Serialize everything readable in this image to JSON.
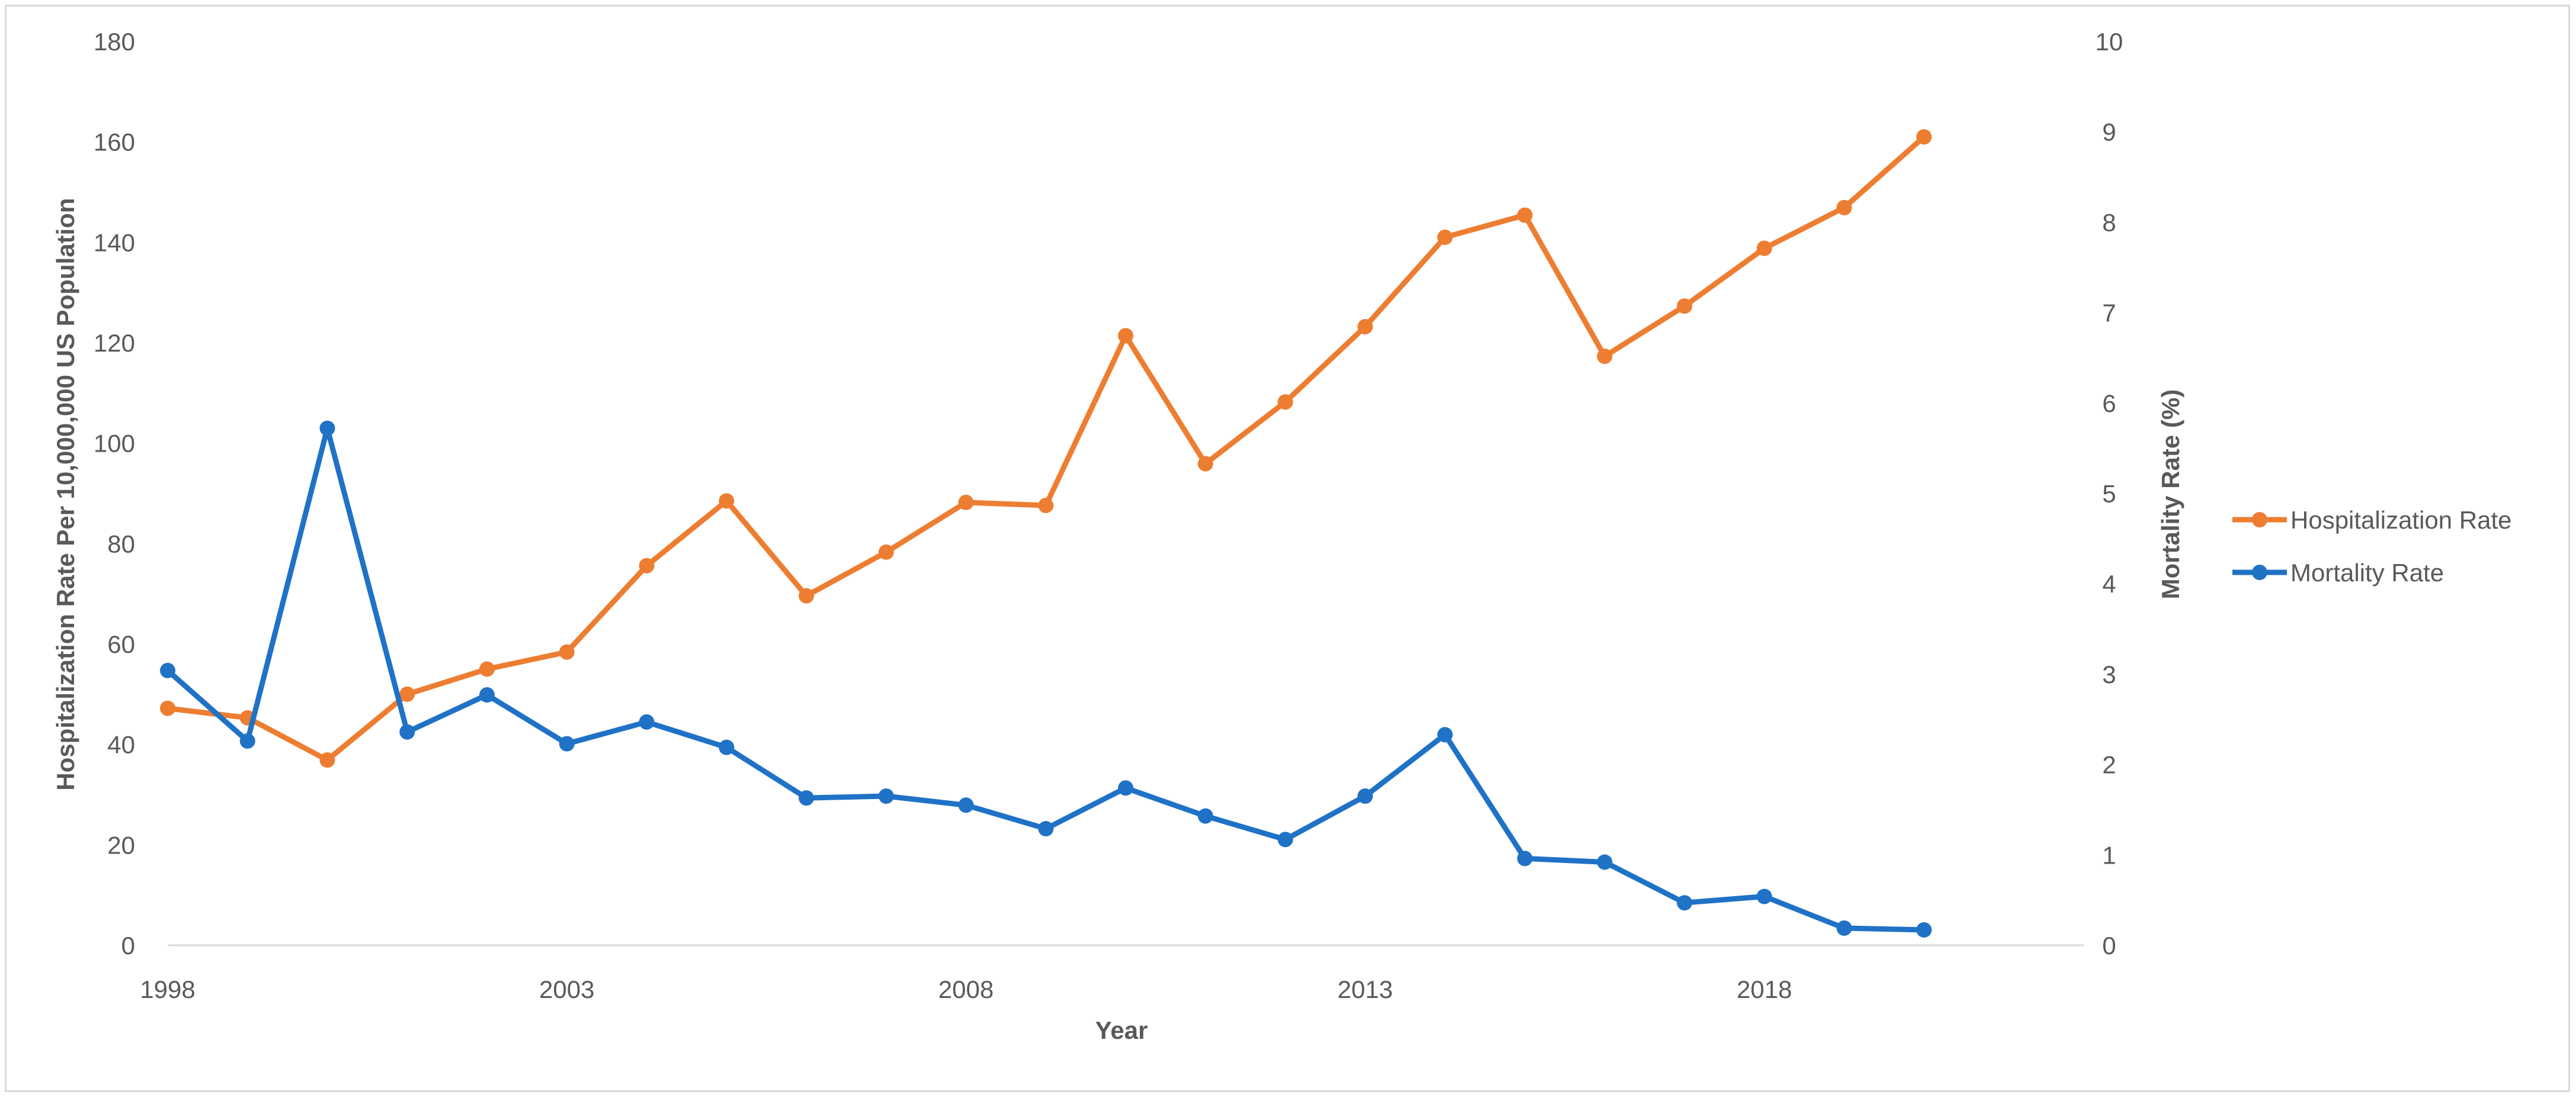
{
  "chart_data": {
    "type": "line",
    "title": "",
    "xlabel": "Year",
    "ylabel_left": "Hospitalization Rate Per 10,000,000 US Population",
    "ylabel_right": "Mortality Rate (%)",
    "x": [
      1998,
      1999,
      2000,
      2001,
      2002,
      2003,
      2004,
      2005,
      2006,
      2007,
      2008,
      2009,
      2010,
      2011,
      2012,
      2013,
      2014,
      2015,
      2016,
      2017,
      2018,
      2019,
      2020
    ],
    "xlim": [
      1998,
      2022
    ],
    "x_tick_labels": [
      "1998",
      "2003",
      "2008",
      "2013",
      "2018"
    ],
    "x_tick_values": [
      1998,
      2003,
      2008,
      2013,
      2018
    ],
    "ylim_left": [
      0,
      180
    ],
    "y_left_ticks": [
      "0",
      "20",
      "40",
      "60",
      "80",
      "100",
      "120",
      "140",
      "160",
      "180"
    ],
    "ylim_right": [
      0,
      10
    ],
    "y_right_ticks": [
      "0",
      "1",
      "2",
      "3",
      "4",
      "5",
      "6",
      "7",
      "8",
      "9",
      "10"
    ],
    "grid": false,
    "legend_position": "right",
    "series": [
      {
        "name": "Hospitalization Rate",
        "axis": "left",
        "color": "#ED7D31",
        "values": [
          47.2,
          45.3,
          36.9,
          50.0,
          55.0,
          58.4,
          75.6,
          88.5,
          69.6,
          78.3,
          88.2,
          87.6,
          121.4,
          95.9,
          108.2,
          123.2,
          141.0,
          145.4,
          117.3,
          127.3,
          138.8,
          146.9,
          161.0
        ]
      },
      {
        "name": "Mortality Rate",
        "axis": "right",
        "color": "#1F72C6",
        "values": [
          3.04,
          2.26,
          5.72,
          2.36,
          2.77,
          2.23,
          2.47,
          2.19,
          1.63,
          1.65,
          1.55,
          1.29,
          1.74,
          1.43,
          1.17,
          1.65,
          2.33,
          0.96,
          0.92,
          0.47,
          0.54,
          0.19,
          0.17
        ]
      }
    ]
  }
}
